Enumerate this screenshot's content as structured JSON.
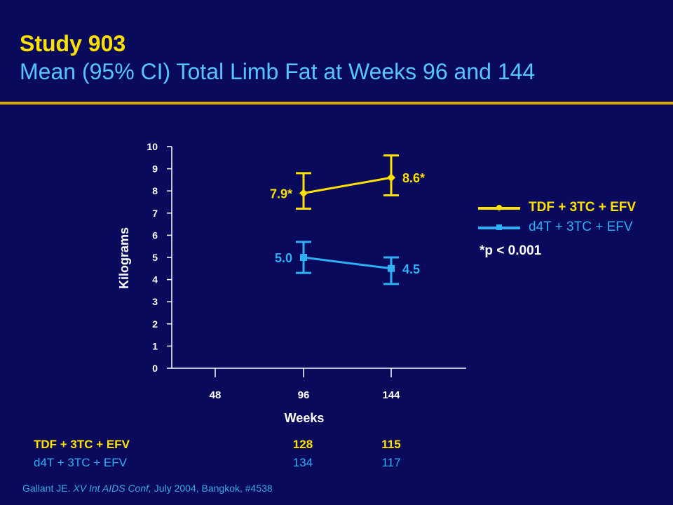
{
  "title": {
    "line1": "Study 903",
    "line2": "Mean (95% CI) Total Limb Fat at Weeks 96 and 144"
  },
  "colors": {
    "background": "#0a0a5c",
    "accent_rule": "#d9a700",
    "title": "#ffe100",
    "subtitle": "#55c4ff",
    "series_tdf": "#ffe100",
    "series_d4t": "#2fb0f5",
    "axis_text": "#ffffff"
  },
  "chart_data": {
    "type": "line",
    "xlabel": "Weeks",
    "ylabel": "Kilograms",
    "x_ticks": [
      "48",
      "96",
      "144"
    ],
    "y_ticks": [
      "0",
      "1",
      "2",
      "3",
      "4",
      "5",
      "6",
      "7",
      "8",
      "9",
      "10"
    ],
    "ylim": [
      0,
      10
    ],
    "series": [
      {
        "name": "TDF + 3TC + EFV",
        "color": "#ffe100",
        "marker": "diamond",
        "points": [
          {
            "x": 96,
            "y": 7.9,
            "ci_low": 7.2,
            "ci_high": 8.8,
            "label": "7.9*"
          },
          {
            "x": 144,
            "y": 8.6,
            "ci_low": 7.8,
            "ci_high": 9.6,
            "label": "8.6*"
          }
        ]
      },
      {
        "name": "d4T + 3TC + EFV",
        "color": "#2fb0f5",
        "marker": "square",
        "points": [
          {
            "x": 96,
            "y": 5.0,
            "ci_low": 4.3,
            "ci_high": 5.7,
            "label": "5.0"
          },
          {
            "x": 144,
            "y": 4.5,
            "ci_low": 3.8,
            "ci_high": 5.0,
            "label": "4.5"
          }
        ]
      }
    ],
    "legend": [
      "TDF + 3TC + EFV",
      "d4T + 3TC + EFV"
    ],
    "legend_position": "right",
    "footnote": "*p < 0.001"
  },
  "n_table": {
    "rows": [
      {
        "label": "TDF + 3TC + EFV",
        "w96": "128",
        "w144": "115"
      },
      {
        "label": "d4T + 3TC + EFV",
        "w96": "134",
        "w144": "117"
      }
    ]
  },
  "citation": {
    "author": "Gallant JE.",
    "conference": "XV Int AIDS Conf,",
    "details": "July 2004, Bangkok, #4538"
  }
}
